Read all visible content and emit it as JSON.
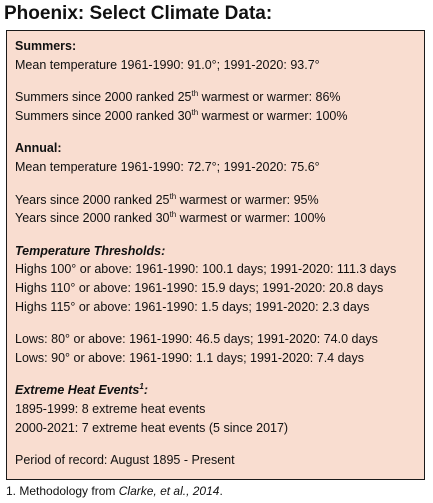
{
  "title": "Phoenix: Select Climate Data:",
  "summers": {
    "heading": "Summers:",
    "mean_temp": "Mean temperature 1961-1990: 91.0°; 1991-2020: 93.7°",
    "ranked25_pre": "Summers since 2000 ranked 25",
    "ranked25_sup": "th",
    "ranked25_post": " warmest or warmer: 86%",
    "ranked30_pre": "Summers since 2000 ranked 30",
    "ranked30_sup": "th",
    "ranked30_post": " warmest or warmer: 100%"
  },
  "annual": {
    "heading": "Annual:",
    "mean_temp": "Mean temperature 1961-1990: 72.7°; 1991-2020: 75.6°",
    "ranked25_pre": "Years since 2000 ranked 25",
    "ranked25_sup": "th",
    "ranked25_post": " warmest or warmer: 95%",
    "ranked30_pre": "Years since 2000 ranked 30",
    "ranked30_sup": "th",
    "ranked30_post": " warmest or warmer: 100%"
  },
  "thresholds": {
    "heading": "Temperature Thresholds:",
    "highs": [
      "Highs 100° or above: 1961-1990: 100.1 days; 1991-2020: 111.3 days",
      "Highs 110° or above: 1961-1990: 15.9 days; 1991-2020: 20.8 days",
      "Highs 115° or above: 1961-1990: 1.5 days; 1991-2020: 2.3 days"
    ],
    "lows": [
      "Lows: 80° or above: 1961-1990: 46.5 days; 1991-2020: 74.0 days",
      "Lows: 90° or above: 1961-1990: 1.1 days; 1991-2020: 7.4 days"
    ]
  },
  "extreme": {
    "heading": "Extreme Heat Events",
    "heading_sup": "1",
    "heading_colon": ":",
    "events": [
      "1895-1999: 8 extreme heat events",
      "2000-2021:  7 extreme heat events (5 since 2017)"
    ]
  },
  "period": "Period of record: August 1895 - Present",
  "footnote": {
    "pre": "1. Methodology from ",
    "cite": "Clarke, et al., 2014",
    "post": "."
  }
}
